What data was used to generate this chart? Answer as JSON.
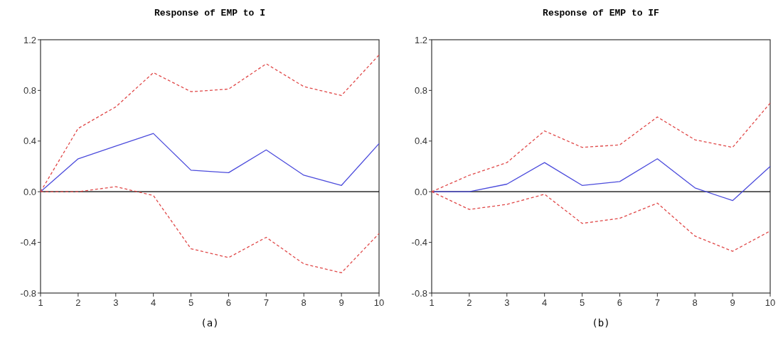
{
  "chart_data": [
    {
      "type": "line",
      "title": "Response of EMP to I",
      "xlabel": "(a)",
      "x": [
        1,
        2,
        3,
        4,
        5,
        6,
        7,
        8,
        9,
        10
      ],
      "xlim": [
        1,
        10
      ],
      "xticks": [
        1,
        2,
        3,
        4,
        5,
        6,
        7,
        8,
        9,
        10
      ],
      "ylim": [
        -0.8,
        1.2
      ],
      "yticks": [
        -0.8,
        -0.4,
        {
          "value": 0,
          "label": "0.0"
        },
        0.4,
        0.8,
        1.2
      ],
      "grid": false,
      "ref_lines": [
        {
          "axis": "y",
          "value": 0,
          "color": "#000000"
        }
      ],
      "series": [
        {
          "color": "#4b4bdc",
          "line_style": "solid",
          "values": [
            0,
            0.26,
            0.36,
            0.46,
            0.17,
            0.15,
            0.33,
            0.13,
            0.05,
            0.38
          ]
        },
        {
          "color": "#e04848",
          "line_style": "dashed",
          "values": [
            0,
            0.5,
            0.67,
            0.94,
            0.79,
            0.81,
            1.01,
            0.83,
            0.76,
            1.08
          ]
        },
        {
          "color": "#e04848",
          "line_style": "dashed",
          "values": [
            0,
            0,
            0.04,
            -0.03,
            -0.45,
            -0.52,
            -0.36,
            -0.57,
            -0.64,
            -0.33
          ]
        }
      ]
    },
    {
      "type": "line",
      "title": "Response of EMP to IF",
      "xlabel": "(b)",
      "x": [
        1,
        2,
        3,
        4,
        5,
        6,
        7,
        8,
        9,
        10
      ],
      "xlim": [
        1,
        10
      ],
      "xticks": [
        1,
        2,
        3,
        4,
        5,
        6,
        7,
        8,
        9,
        10
      ],
      "ylim": [
        -0.8,
        1.2
      ],
      "yticks": [
        -0.8,
        -0.4,
        {
          "value": 0,
          "label": "0.0"
        },
        0.4,
        0.8,
        1.2
      ],
      "grid": false,
      "ref_lines": [
        {
          "axis": "y",
          "value": 0,
          "color": "#000000"
        }
      ],
      "series": [
        {
          "color": "#4b4bdc",
          "line_style": "solid",
          "values": [
            0,
            0,
            0.06,
            0.23,
            0.05,
            0.08,
            0.26,
            0.03,
            -0.07,
            0.2
          ]
        },
        {
          "color": "#e04848",
          "line_style": "dashed",
          "values": [
            0,
            0.13,
            0.23,
            0.48,
            0.35,
            0.37,
            0.59,
            0.41,
            0.35,
            0.7
          ]
        },
        {
          "color": "#e04848",
          "line_style": "dashed",
          "values": [
            0,
            -0.14,
            -0.1,
            -0.02,
            -0.25,
            -0.21,
            -0.09,
            -0.35,
            -0.47,
            -0.31
          ]
        }
      ]
    }
  ]
}
